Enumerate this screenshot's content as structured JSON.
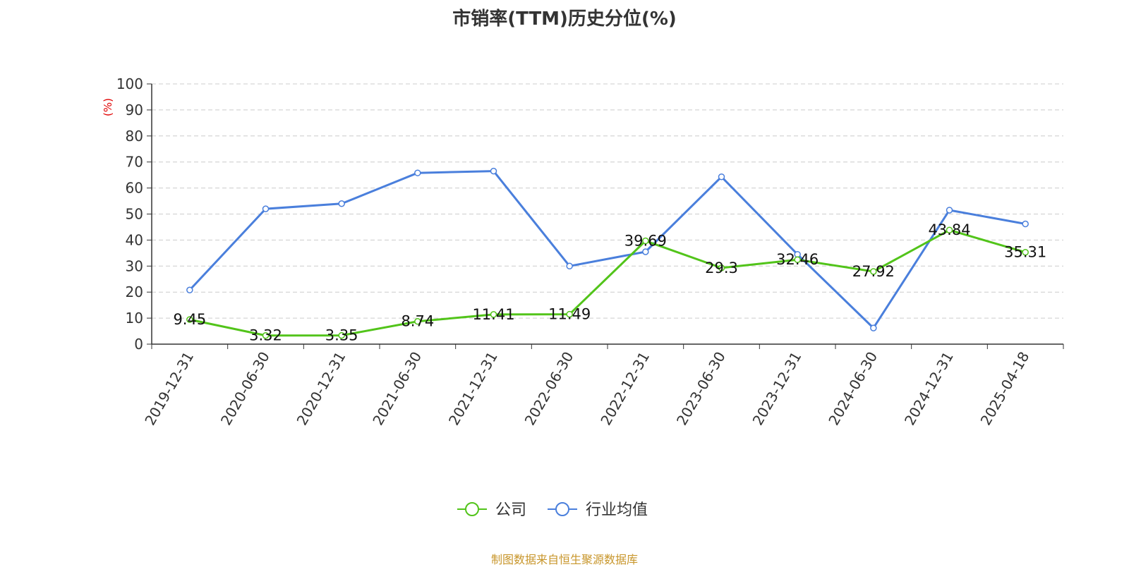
{
  "chart_data": {
    "type": "line",
    "title": "市销率(TTM)历史分位(%)",
    "ylabel": "(%)",
    "categories": [
      "2019-12-31",
      "2020-06-30",
      "2020-12-31",
      "2021-06-30",
      "2021-12-31",
      "2022-06-30",
      "2022-12-31",
      "2023-06-30",
      "2023-12-31",
      "2024-06-30",
      "2024-12-31",
      "2025-04-18"
    ],
    "ylim": [
      0,
      100
    ],
    "yticks": [
      "0",
      "10",
      "20",
      "30",
      "40",
      "50",
      "60",
      "70",
      "80",
      "90",
      "100"
    ],
    "grid": true,
    "legend_position": "bottom",
    "series": [
      {
        "name": "公司",
        "color": "#52c41a",
        "values": [
          9.45,
          3.32,
          3.35,
          8.74,
          11.41,
          11.49,
          39.69,
          29.3,
          32.46,
          27.92,
          43.84,
          35.31
        ],
        "labels": [
          "9.45",
          "3.32",
          "3.35",
          "8.74",
          "11.41",
          "11.49",
          "39.69",
          "29.3",
          "32.46",
          "27.92",
          "43.84",
          "35.31"
        ]
      },
      {
        "name": "行业均值",
        "color": "#4a7fdc",
        "values": [
          20.8,
          52.0,
          54.0,
          65.8,
          66.5,
          30.0,
          35.5,
          64.3,
          34.5,
          6.2,
          51.5,
          46.2
        ]
      }
    ]
  },
  "footer": {
    "source": "制图数据来自恒生聚源数据库"
  }
}
